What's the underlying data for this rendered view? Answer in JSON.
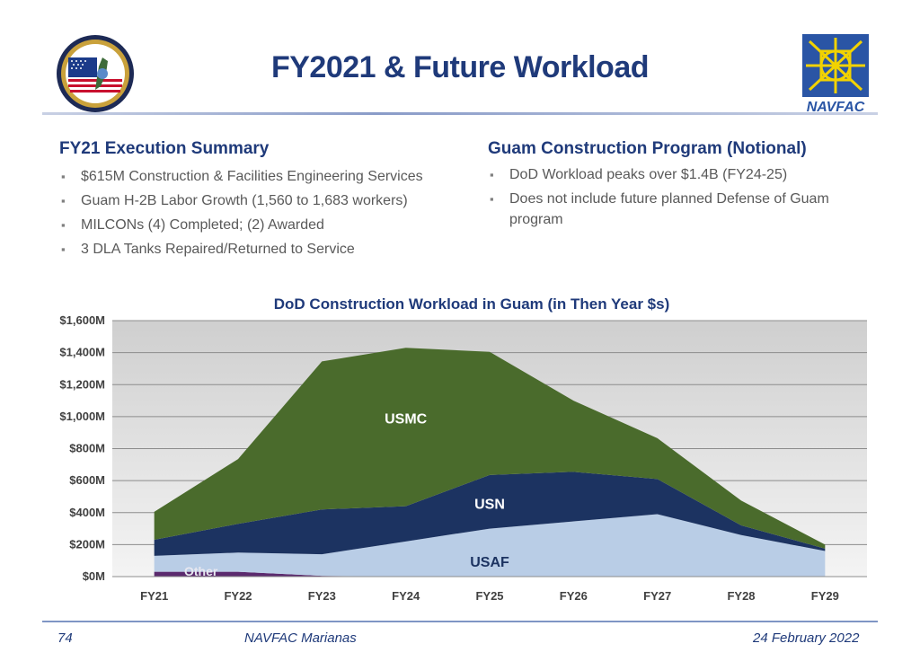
{
  "slide": {
    "title": "FY2021 & Future Workload",
    "logo_text": "NAVFAC"
  },
  "left": {
    "heading": "FY21 Execution Summary",
    "bullets": [
      "$615M Construction & Facilities Engineering Services",
      "Guam H-2B Labor Growth (1,560 to 1,683 workers)",
      "MILCONs (4) Completed; (2) Awarded",
      "3 DLA Tanks Repaired/Returned to Service"
    ]
  },
  "right": {
    "heading": "Guam Construction Program (Notional)",
    "bullets": [
      "DoD Workload peaks over $1.4B (FY24-25)",
      "Does not include future planned Defense of Guam program"
    ]
  },
  "footer": {
    "page": "74",
    "center": "NAVFAC Marianas",
    "date": "24 February 2022"
  },
  "colors": {
    "title": "#1f3a7a",
    "usmc": "#4a6b2c",
    "usn": "#1c3361",
    "usaf": "#b9cde6",
    "other": "#5b2a6e"
  },
  "chart_data": {
    "type": "area",
    "stacked": true,
    "title": "DoD Construction Workload in Guam (in Then Year $s)",
    "categories": [
      "FY21",
      "FY22",
      "FY23",
      "FY24",
      "FY25",
      "FY26",
      "FY27",
      "FY28",
      "FY29"
    ],
    "ylim": [
      0,
      1600
    ],
    "yticks": [
      0,
      200,
      400,
      600,
      800,
      1000,
      1200,
      1400,
      1600
    ],
    "ytick_labels": [
      "$0M",
      "$200M",
      "$400M",
      "$600M",
      "$800M",
      "$1,000M",
      "$1,200M",
      "$1,400M",
      "$1,600M"
    ],
    "grid": true,
    "series": [
      {
        "name": "Other",
        "color": "#5b2a6e",
        "values": [
          30,
          30,
          5,
          0,
          0,
          0,
          0,
          0,
          0
        ]
      },
      {
        "name": "USAF",
        "color": "#b9cde6",
        "values": [
          100,
          120,
          135,
          220,
          300,
          345,
          390,
          260,
          160
        ]
      },
      {
        "name": "USN",
        "color": "#1c3361",
        "values": [
          100,
          180,
          280,
          220,
          335,
          310,
          220,
          60,
          15
        ]
      },
      {
        "name": "USMC",
        "color": "#4a6b2c",
        "values": [
          175,
          405,
          925,
          990,
          770,
          445,
          255,
          155,
          25
        ]
      }
    ]
  }
}
